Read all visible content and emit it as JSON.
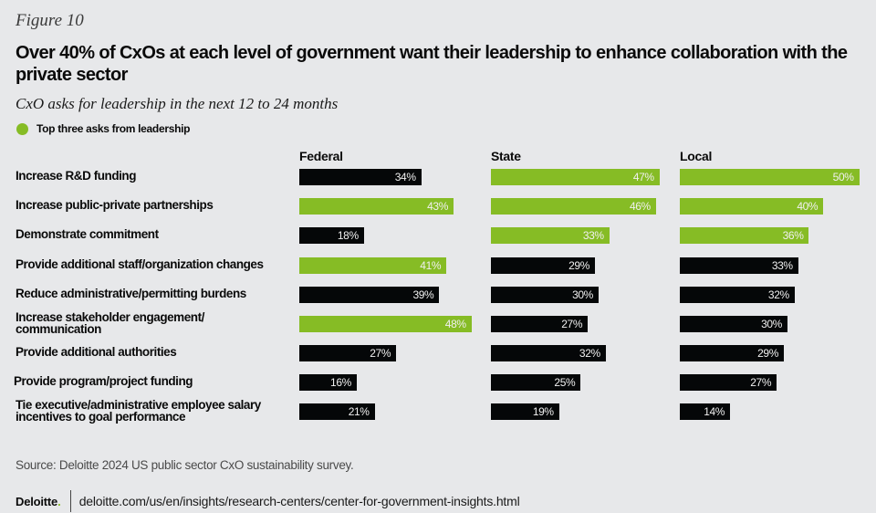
{
  "figure_label": "Figure 10",
  "colors": {
    "highlight": "#86bc25",
    "default": "#050708",
    "background": "#e7e8ea"
  },
  "chart_data": {
    "type": "bar",
    "orientation": "horizontal",
    "title": "Over 40% of CxOs at each level of government want their leadership to enhance collaboration with the private sector",
    "subtitle": "CxO asks for leadership in the next 12 to 24 months",
    "legend": [
      {
        "label": "Top three asks from leadership",
        "color": "#86bc25"
      }
    ],
    "legend_position": "top-left",
    "unit": "%",
    "xlim": [
      0,
      50
    ],
    "grid": false,
    "categories": [
      "Increase R&D funding",
      "Increase public-private partnerships",
      "Demonstrate commitment",
      "Provide additional staff/organization changes",
      "Reduce administrative/permitting burdens",
      "Increase stakeholder engagement/ communication",
      "Provide additional authorities",
      "Provide program/project funding",
      "Tie executive/administrative employee salary incentives to goal performance"
    ],
    "series": [
      {
        "name": "Federal",
        "values": [
          34,
          43,
          18,
          41,
          39,
          48,
          27,
          16,
          21
        ],
        "top_three": [
          false,
          true,
          false,
          true,
          false,
          true,
          false,
          false,
          false
        ]
      },
      {
        "name": "State",
        "values": [
          47,
          46,
          33,
          29,
          30,
          27,
          32,
          25,
          19
        ],
        "top_three": [
          true,
          true,
          true,
          false,
          false,
          false,
          false,
          false,
          false
        ]
      },
      {
        "name": "Local",
        "values": [
          50,
          40,
          36,
          33,
          32,
          30,
          29,
          27,
          14
        ],
        "top_three": [
          true,
          true,
          true,
          false,
          false,
          false,
          false,
          false,
          false
        ]
      }
    ]
  },
  "footer": {
    "source": "Source: Deloitte 2024 US public sector CxO sustainability survey.",
    "brand": "Deloitte",
    "brand_dot": ".",
    "url": "deloitte.com/us/en/insights/research-centers/center-for-government-insights.html"
  }
}
